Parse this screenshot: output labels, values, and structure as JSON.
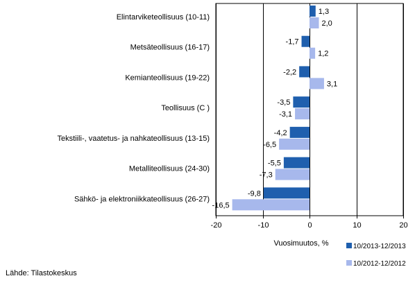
{
  "chart_data": {
    "type": "bar",
    "orientation": "horizontal",
    "categories": [
      "Elintarviketeollisuus (10-11)",
      "Metsäteollisuus (16-17)",
      "Kemianteollisuus (19-22)",
      "Teollisuus (C )",
      "Tekstiili-, vaatetus- ja nahkateollisuus (13-15)",
      "Metalliteollisuus (24-30)",
      "Sähkö- ja elektroniikkateollisuus (26-27)"
    ],
    "series": [
      {
        "name": "10/2013-12/2013",
        "color": "#1f5fae",
        "values": [
          1.3,
          -1.7,
          -2.2,
          -3.5,
          -4.2,
          -5.5,
          -9.8
        ],
        "labels": [
          "1,3",
          "-1,7",
          "-2,2",
          "-3,5",
          "-4,2",
          "-5,5",
          "-9,8"
        ]
      },
      {
        "name": "10/2012-12/2012",
        "color": "#a7b8ec",
        "values": [
          2.0,
          1.2,
          3.1,
          -3.1,
          -6.5,
          -7.3,
          -16.5
        ],
        "labels": [
          "2,0",
          "1,2",
          "3,1",
          "-3,1",
          "-6,5",
          "-7,3",
          "-16,5"
        ]
      }
    ],
    "xlabel": "Vuosimuutos, %",
    "xlim": [
      -20,
      20
    ],
    "xticks": [
      -20,
      -10,
      0,
      10,
      20
    ],
    "grid": "vertical major lines",
    "legend_placement": "bottom-right"
  },
  "source_text": "Lähde: Tilastokeskus"
}
